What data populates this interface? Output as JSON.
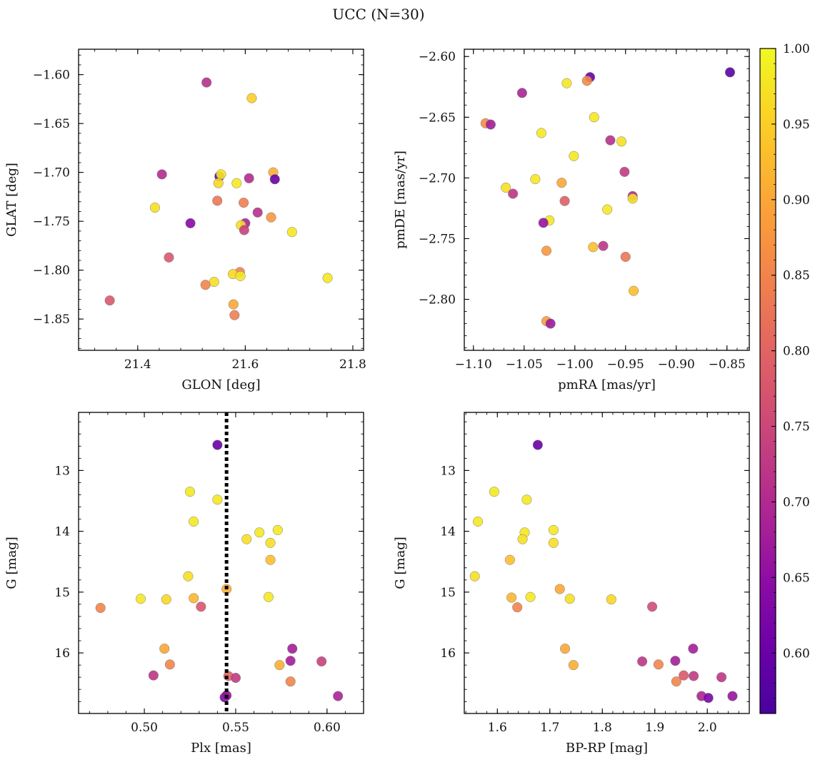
{
  "figure": {
    "title": "UCC (N=30)",
    "colorbar": {
      "colormap": "plasma",
      "range": [
        0.56,
        1.0
      ],
      "ticks": [
        0.6,
        0.65,
        0.7,
        0.75,
        0.8,
        0.85,
        0.9,
        0.95,
        1.0
      ],
      "tick_labels": [
        "0.60",
        "0.65",
        "0.70",
        "0.75",
        "0.80",
        "0.85",
        "0.90",
        "0.95",
        "1.00"
      ]
    }
  },
  "chart_data": [
    {
      "type": "scatter",
      "title": "",
      "xlabel": "GLON [deg]",
      "ylabel": "GLAT [deg]",
      "xlim": [
        21.29,
        21.82
      ],
      "ylim": [
        -1.882,
        -1.574
      ],
      "xticks": [
        21.4,
        21.6,
        21.8
      ],
      "xtick_labels": [
        "21.4",
        "21.6",
        "21.8"
      ],
      "yticks": [
        -1.85,
        -1.8,
        -1.75,
        -1.7,
        -1.65,
        -1.6
      ],
      "ytick_labels": [
        "−1.85",
        "−1.80",
        "−1.75",
        "−1.70",
        "−1.65",
        "−1.60"
      ],
      "points": [
        {
          "x": 21.528,
          "y": -1.608,
          "c": 0.71
        },
        {
          "x": 21.612,
          "y": -1.624,
          "c": 0.95
        },
        {
          "x": 21.445,
          "y": -1.702,
          "c": 0.7
        },
        {
          "x": 21.552,
          "y": -1.704,
          "c": 0.58
        },
        {
          "x": 21.555,
          "y": -1.702,
          "c": 0.98
        },
        {
          "x": 21.607,
          "y": -1.706,
          "c": 0.7
        },
        {
          "x": 21.652,
          "y": -1.7,
          "c": 0.91
        },
        {
          "x": 21.655,
          "y": -1.707,
          "c": 0.6
        },
        {
          "x": 21.55,
          "y": -1.711,
          "c": 0.96
        },
        {
          "x": 21.584,
          "y": -1.711,
          "c": 0.98
        },
        {
          "x": 21.548,
          "y": -1.729,
          "c": 0.83
        },
        {
          "x": 21.597,
          "y": -1.731,
          "c": 0.84
        },
        {
          "x": 21.432,
          "y": -1.736,
          "c": 0.97
        },
        {
          "x": 21.623,
          "y": -1.741,
          "c": 0.71
        },
        {
          "x": 21.648,
          "y": -1.746,
          "c": 0.88
        },
        {
          "x": 21.498,
          "y": -1.752,
          "c": 0.64
        },
        {
          "x": 21.6,
          "y": -1.752,
          "c": 0.69
        },
        {
          "x": 21.592,
          "y": -1.754,
          "c": 0.97
        },
        {
          "x": 21.598,
          "y": -1.759,
          "c": 0.74
        },
        {
          "x": 21.687,
          "y": -1.761,
          "c": 0.98
        },
        {
          "x": 21.458,
          "y": -1.787,
          "c": 0.78
        },
        {
          "x": 21.59,
          "y": -1.802,
          "c": 0.85
        },
        {
          "x": 21.577,
          "y": -1.804,
          "c": 0.96
        },
        {
          "x": 21.591,
          "y": -1.806,
          "c": 0.98
        },
        {
          "x": 21.753,
          "y": -1.808,
          "c": 0.98
        },
        {
          "x": 21.542,
          "y": -1.812,
          "c": 0.97
        },
        {
          "x": 21.526,
          "y": -1.815,
          "c": 0.85
        },
        {
          "x": 21.578,
          "y": -1.835,
          "c": 0.9
        },
        {
          "x": 21.348,
          "y": -1.831,
          "c": 0.78
        },
        {
          "x": 21.58,
          "y": -1.846,
          "c": 0.84
        }
      ]
    },
    {
      "type": "scatter",
      "title": "",
      "xlabel": "pmRA [mas/yr]",
      "ylabel": "pmDE [mas/yr]",
      "xlim": [
        -1.109,
        -0.828
      ],
      "ylim": [
        -2.842,
        -2.594
      ],
      "xticks": [
        -1.1,
        -1.05,
        -1.0,
        -0.95,
        -0.9,
        -0.85
      ],
      "xtick_labels": [
        "−1.10",
        "−1.05",
        "−1.00",
        "−0.95",
        "−0.90",
        "−0.85"
      ],
      "yticks": [
        -2.8,
        -2.75,
        -2.7,
        -2.65,
        -2.6
      ],
      "ytick_labels": [
        "−2.80",
        "−2.75",
        "−2.70",
        "−2.65",
        "−2.60"
      ],
      "points": [
        {
          "x": -0.847,
          "y": -2.613,
          "c": 0.58
        },
        {
          "x": -0.985,
          "y": -2.617,
          "c": 0.6
        },
        {
          "x": -0.988,
          "y": -2.62,
          "c": 0.86
        },
        {
          "x": -1.008,
          "y": -2.622,
          "c": 0.98
        },
        {
          "x": -1.052,
          "y": -2.63,
          "c": 0.69
        },
        {
          "x": -0.981,
          "y": -2.65,
          "c": 0.98
        },
        {
          "x": -1.088,
          "y": -2.655,
          "c": 0.86
        },
        {
          "x": -1.083,
          "y": -2.656,
          "c": 0.68
        },
        {
          "x": -1.033,
          "y": -2.663,
          "c": 0.98
        },
        {
          "x": -0.965,
          "y": -2.669,
          "c": 0.71
        },
        {
          "x": -0.954,
          "y": -2.67,
          "c": 0.97
        },
        {
          "x": -1.001,
          "y": -2.682,
          "c": 0.98
        },
        {
          "x": -0.951,
          "y": -2.695,
          "c": 0.73
        },
        {
          "x": -1.039,
          "y": -2.701,
          "c": 0.98
        },
        {
          "x": -1.013,
          "y": -2.704,
          "c": 0.9
        },
        {
          "x": -1.068,
          "y": -2.708,
          "c": 0.97
        },
        {
          "x": -1.061,
          "y": -2.713,
          "c": 0.72
        },
        {
          "x": -0.943,
          "y": -2.715,
          "c": 0.7
        },
        {
          "x": -0.943,
          "y": -2.717,
          "c": 0.97
        },
        {
          "x": -1.01,
          "y": -2.719,
          "c": 0.79
        },
        {
          "x": -0.968,
          "y": -2.726,
          "c": 0.98
        },
        {
          "x": -1.025,
          "y": -2.735,
          "c": 0.98
        },
        {
          "x": -1.031,
          "y": -2.737,
          "c": 0.66
        },
        {
          "x": -0.982,
          "y": -2.757,
          "c": 0.93
        },
        {
          "x": -0.972,
          "y": -2.756,
          "c": 0.72
        },
        {
          "x": -1.028,
          "y": -2.76,
          "c": 0.88
        },
        {
          "x": -0.95,
          "y": -2.765,
          "c": 0.83
        },
        {
          "x": -0.942,
          "y": -2.793,
          "c": 0.93
        },
        {
          "x": -1.028,
          "y": -2.818,
          "c": 0.89
        },
        {
          "x": -1.024,
          "y": -2.82,
          "c": 0.67
        }
      ]
    },
    {
      "type": "scatter",
      "title": "",
      "xlabel": "Plx [mas]",
      "ylabel": "G [mag]",
      "xlim": [
        0.464,
        0.62
      ],
      "ylim": [
        16.996,
        12.045
      ],
      "xticks": [
        0.5,
        0.55,
        0.6
      ],
      "xtick_labels": [
        "0.50",
        "0.55",
        "0.60"
      ],
      "yticks": [
        13,
        14,
        15,
        16
      ],
      "ytick_labels": [
        "13",
        "14",
        "15",
        "16"
      ],
      "vline": {
        "x": 0.545,
        "style": "dotted",
        "color": "#000000"
      },
      "points": [
        {
          "x": 0.54,
          "y": 12.58,
          "c": 0.6
        },
        {
          "x": 0.525,
          "y": 13.35,
          "c": 0.98
        },
        {
          "x": 0.54,
          "y": 13.48,
          "c": 0.98
        },
        {
          "x": 0.527,
          "y": 13.84,
          "c": 0.98
        },
        {
          "x": 0.573,
          "y": 13.98,
          "c": 0.98
        },
        {
          "x": 0.563,
          "y": 14.02,
          "c": 0.98
        },
        {
          "x": 0.556,
          "y": 14.13,
          "c": 0.97
        },
        {
          "x": 0.569,
          "y": 14.19,
          "c": 0.97
        },
        {
          "x": 0.569,
          "y": 14.47,
          "c": 0.93
        },
        {
          "x": 0.524,
          "y": 14.74,
          "c": 0.97
        },
        {
          "x": 0.545,
          "y": 14.95,
          "c": 0.91
        },
        {
          "x": 0.568,
          "y": 15.08,
          "c": 0.98
        },
        {
          "x": 0.498,
          "y": 15.11,
          "c": 0.98
        },
        {
          "x": 0.527,
          "y": 15.1,
          "c": 0.92
        },
        {
          "x": 0.512,
          "y": 15.12,
          "c": 0.96
        },
        {
          "x": 0.476,
          "y": 15.26,
          "c": 0.85
        },
        {
          "x": 0.531,
          "y": 15.24,
          "c": 0.78
        },
        {
          "x": 0.511,
          "y": 15.93,
          "c": 0.9
        },
        {
          "x": 0.581,
          "y": 15.93,
          "c": 0.68
        },
        {
          "x": 0.58,
          "y": 16.13,
          "c": 0.68
        },
        {
          "x": 0.597,
          "y": 16.14,
          "c": 0.74
        },
        {
          "x": 0.514,
          "y": 16.19,
          "c": 0.85
        },
        {
          "x": 0.574,
          "y": 16.2,
          "c": 0.91
        },
        {
          "x": 0.505,
          "y": 16.37,
          "c": 0.72
        },
        {
          "x": 0.546,
          "y": 16.38,
          "c": 0.8
        },
        {
          "x": 0.55,
          "y": 16.41,
          "c": 0.73
        },
        {
          "x": 0.58,
          "y": 16.47,
          "c": 0.85
        },
        {
          "x": 0.606,
          "y": 16.71,
          "c": 0.69
        },
        {
          "x": 0.544,
          "y": 16.73,
          "c": 0.62
        },
        {
          "x": 0.545,
          "y": 16.7,
          "c": 0.66
        }
      ]
    },
    {
      "type": "scatter",
      "title": "",
      "xlabel": "BP-RP [mag]",
      "ylabel": "G [mag]",
      "xlim": [
        1.537,
        2.08
      ],
      "ylim": [
        16.996,
        12.045
      ],
      "xticks": [
        1.6,
        1.7,
        1.8,
        1.9,
        2.0
      ],
      "xtick_labels": [
        "1.6",
        "1.7",
        "1.8",
        "1.9",
        "2.0"
      ],
      "yticks": [
        13,
        14,
        15,
        16
      ],
      "ytick_labels": [
        "13",
        "14",
        "15",
        "16"
      ],
      "points": [
        {
          "x": 1.677,
          "y": 12.58,
          "c": 0.6
        },
        {
          "x": 1.594,
          "y": 13.35,
          "c": 0.98
        },
        {
          "x": 1.656,
          "y": 13.48,
          "c": 0.98
        },
        {
          "x": 1.563,
          "y": 13.84,
          "c": 0.98
        },
        {
          "x": 1.707,
          "y": 13.98,
          "c": 0.98
        },
        {
          "x": 1.652,
          "y": 14.02,
          "c": 0.98
        },
        {
          "x": 1.648,
          "y": 14.13,
          "c": 0.97
        },
        {
          "x": 1.707,
          "y": 14.19,
          "c": 0.97
        },
        {
          "x": 1.624,
          "y": 14.47,
          "c": 0.93
        },
        {
          "x": 1.557,
          "y": 14.74,
          "c": 0.97
        },
        {
          "x": 1.719,
          "y": 14.95,
          "c": 0.9
        },
        {
          "x": 1.663,
          "y": 15.08,
          "c": 0.98
        },
        {
          "x": 1.627,
          "y": 15.09,
          "c": 0.92
        },
        {
          "x": 1.738,
          "y": 15.11,
          "c": 0.97
        },
        {
          "x": 1.817,
          "y": 15.12,
          "c": 0.96
        },
        {
          "x": 1.638,
          "y": 15.25,
          "c": 0.85
        },
        {
          "x": 1.895,
          "y": 15.24,
          "c": 0.76
        },
        {
          "x": 1.729,
          "y": 15.93,
          "c": 0.9
        },
        {
          "x": 1.973,
          "y": 15.93,
          "c": 0.68
        },
        {
          "x": 1.876,
          "y": 16.14,
          "c": 0.72
        },
        {
          "x": 1.939,
          "y": 16.13,
          "c": 0.68
        },
        {
          "x": 1.907,
          "y": 16.19,
          "c": 0.85
        },
        {
          "x": 1.745,
          "y": 16.2,
          "c": 0.91
        },
        {
          "x": 1.955,
          "y": 16.37,
          "c": 0.78
        },
        {
          "x": 1.974,
          "y": 16.38,
          "c": 0.73
        },
        {
          "x": 2.027,
          "y": 16.4,
          "c": 0.72
        },
        {
          "x": 1.941,
          "y": 16.47,
          "c": 0.85
        },
        {
          "x": 1.989,
          "y": 16.71,
          "c": 0.69
        },
        {
          "x": 2.048,
          "y": 16.71,
          "c": 0.66
        },
        {
          "x": 2.002,
          "y": 16.74,
          "c": 0.62
        }
      ]
    }
  ]
}
